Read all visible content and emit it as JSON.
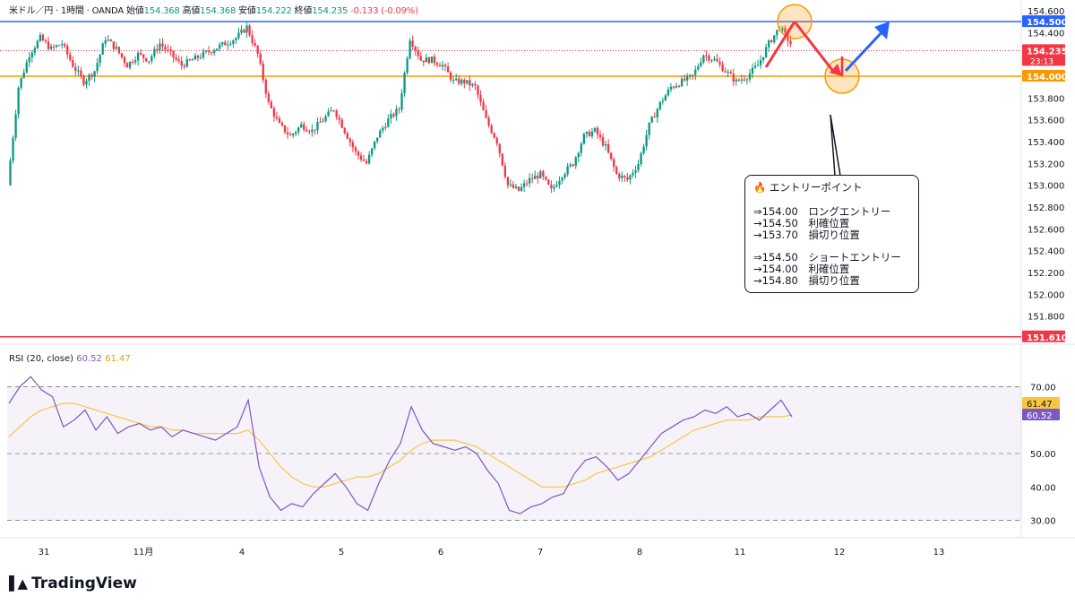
{
  "header": {
    "symbol": "米ドル／円 · 1時間 · OANDA",
    "open_label": "始値",
    "open": "154.368",
    "high_label": "高値",
    "high": "154.368",
    "low_label": "安値",
    "low": "154.222",
    "close_label": "終値",
    "close": "154.235",
    "change": "-0.133 (-0.09%)"
  },
  "rsi_header": {
    "label": "RSI (20, close)",
    "rsi": "60.52",
    "ma": "61.47"
  },
  "brand": "TradingView",
  "note": {
    "title": "エントリーポイント",
    "long": [
      {
        "price": "⇒154.00",
        "text": "ロングエントリー"
      },
      {
        "price": "→154.50",
        "text": "利確位置"
      },
      {
        "price": "→153.70",
        "text": "損切り位置"
      }
    ],
    "short": [
      {
        "price": "⇒154.50",
        "text": "ショートエントリー"
      },
      {
        "price": "→154.00",
        "text": "利確位置"
      },
      {
        "price": "→154.80",
        "text": "損切り位置"
      }
    ]
  },
  "colors": {
    "up": "#089981",
    "down": "#f23645",
    "blue": "#2962ff",
    "orange": "#ff9800",
    "red": "#f23645",
    "rsi": "#7e57c2",
    "rsi_ma": "#f5c842"
  },
  "chart_data": [
    {
      "type": "candlestick",
      "ylim": [
        151.6,
        154.6
      ],
      "yticks": [
        "154.600",
        "154.400",
        "153.800",
        "153.600",
        "153.400",
        "153.200",
        "153.000",
        "152.800",
        "152.600",
        "152.400",
        "152.200",
        "152.000",
        "151.800"
      ],
      "xticks": [
        "31",
        "11月",
        "4",
        "5",
        "6",
        "7",
        "8",
        "11",
        "12",
        "13"
      ],
      "price_labels": [
        {
          "value": 154.5,
          "text": "154.500",
          "color": "#2962ff"
        },
        {
          "value": 154.235,
          "text": "154.235",
          "sub": "23:13",
          "color": "#f23645"
        },
        {
          "value": 154.0,
          "text": "154.000",
          "color": "#ff9800"
        },
        {
          "value": 151.61,
          "text": "151.610",
          "color": "#f23645"
        }
      ],
      "hlines": [
        {
          "value": 154.5,
          "color": "#2962ff"
        },
        {
          "value": 154.0,
          "color": "#ff9800"
        },
        {
          "value": 151.61,
          "color": "#f23645"
        }
      ],
      "close_path": [
        [
          0,
          153.0
        ],
        [
          1,
          153.9
        ],
        [
          2,
          154.2
        ],
        [
          3,
          154.35
        ],
        [
          4,
          154.25
        ],
        [
          5,
          154.3
        ],
        [
          6,
          154.1
        ],
        [
          7,
          153.95
        ],
        [
          8,
          154.05
        ],
        [
          9,
          154.35
        ],
        [
          10,
          154.25
        ],
        [
          11,
          154.1
        ],
        [
          12,
          154.2
        ],
        [
          13,
          154.15
        ],
        [
          14,
          154.3
        ],
        [
          15,
          154.2
        ],
        [
          16,
          154.1
        ],
        [
          17,
          154.15
        ],
        [
          18,
          154.2
        ],
        [
          19,
          154.25
        ],
        [
          20,
          154.3
        ],
        [
          21,
          154.35
        ],
        [
          22,
          154.45
        ],
        [
          23,
          154.2
        ],
        [
          24,
          153.75
        ],
        [
          25,
          153.55
        ],
        [
          26,
          153.45
        ],
        [
          27,
          153.55
        ],
        [
          28,
          153.5
        ],
        [
          29,
          153.6
        ],
        [
          30,
          153.7
        ],
        [
          31,
          153.5
        ],
        [
          32,
          153.3
        ],
        [
          33,
          153.2
        ],
        [
          34,
          153.45
        ],
        [
          35,
          153.6
        ],
        [
          36,
          153.7
        ],
        [
          37,
          154.35
        ],
        [
          38,
          154.15
        ],
        [
          39,
          154.15
        ],
        [
          40,
          154.1
        ],
        [
          41,
          153.95
        ],
        [
          42,
          153.95
        ],
        [
          43,
          153.9
        ],
        [
          44,
          153.6
        ],
        [
          45,
          153.4
        ],
        [
          46,
          153.0
        ],
        [
          47,
          152.95
        ],
        [
          48,
          153.05
        ],
        [
          49,
          153.1
        ],
        [
          50,
          152.95
        ],
        [
          51,
          153.1
        ],
        [
          52,
          153.2
        ],
        [
          53,
          153.45
        ],
        [
          54,
          153.5
        ],
        [
          55,
          153.35
        ],
        [
          56,
          153.1
        ],
        [
          57,
          153.05
        ],
        [
          58,
          153.2
        ],
        [
          59,
          153.55
        ],
        [
          60,
          153.75
        ],
        [
          61,
          153.9
        ],
        [
          62,
          153.95
        ],
        [
          63,
          154.0
        ],
        [
          64,
          154.2
        ],
        [
          65,
          154.15
        ],
        [
          66,
          154.05
        ],
        [
          67,
          153.95
        ],
        [
          68,
          154.0
        ],
        [
          69,
          154.1
        ],
        [
          70,
          154.3
        ],
        [
          71,
          154.45
        ],
        [
          72,
          154.3
        ]
      ],
      "annotation_path": [
        [
          154.5
        ],
        [
          154.0
        ],
        [
          154.5
        ]
      ]
    },
    {
      "type": "line",
      "name": "RSI (20, close)",
      "ylim": [
        28,
        72
      ],
      "yticks": [
        "70.00",
        "50.00",
        "40.00",
        "30.00"
      ],
      "series": [
        {
          "values": [
            65,
            70,
            73,
            69,
            67,
            58,
            60,
            63,
            57,
            61,
            56,
            58,
            59,
            57,
            58,
            55,
            57,
            56,
            55,
            54,
            56,
            58,
            66,
            46,
            37,
            33,
            35,
            34,
            38,
            41,
            44,
            40,
            35,
            33,
            41,
            48,
            53,
            64,
            57,
            53,
            52,
            51,
            52,
            50,
            45,
            41,
            33,
            32,
            34,
            35,
            37,
            38,
            44,
            48,
            49,
            46,
            42,
            44,
            48,
            52,
            56,
            58,
            60,
            61,
            63,
            62,
            64,
            61,
            62,
            60,
            63,
            66,
            61
          ]
        },
        {
          "values": [
            55,
            58,
            61,
            63,
            64,
            65,
            65,
            64,
            63,
            62,
            61,
            60,
            59,
            58,
            58,
            57,
            57,
            56,
            56,
            56,
            56,
            56,
            57,
            54,
            50,
            46,
            43,
            41,
            40,
            40,
            41,
            42,
            43,
            43,
            44,
            46,
            48,
            51,
            53,
            54,
            54,
            54,
            53,
            52,
            50,
            48,
            46,
            44,
            42,
            40,
            40,
            40,
            41,
            42,
            44,
            45,
            46,
            47,
            48,
            49,
            51,
            53,
            55,
            57,
            58,
            59,
            60,
            60,
            60,
            61,
            61,
            61,
            61.5
          ]
        }
      ]
    }
  ]
}
